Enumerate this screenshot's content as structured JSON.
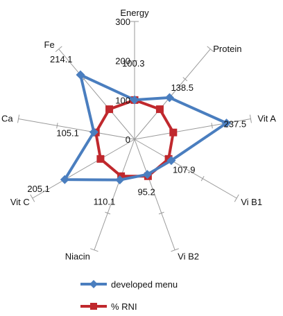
{
  "chart_data": {
    "type": "radar",
    "categories": [
      "Energy",
      "Protein",
      "Vit A",
      "Vi B1",
      "Vi B2",
      "Niacin",
      "Vit C",
      "Ca",
      "Fe"
    ],
    "series": [
      {
        "name": "developed menu",
        "values": [
          100.3,
          138.5,
          237.5,
          107.9,
          95.2,
          110.1,
          205.1,
          105.1,
          214.1
        ],
        "color": "#4a7ebf",
        "marker": "diamond"
      },
      {
        "name": "% RNI",
        "values": [
          100,
          100,
          100,
          100,
          100,
          100,
          100,
          100,
          100
        ],
        "color": "#c0282d",
        "marker": "square"
      }
    ],
    "data_labels": [
      "100.3",
      "138.5",
      "237.5",
      "107.9",
      "95.2",
      "110.1",
      "205.1",
      "105.1",
      "214.1"
    ],
    "rlim": [
      0,
      300
    ],
    "ticks": [
      0,
      100,
      200,
      300
    ],
    "tick_labels": [
      "0",
      "100",
      "200",
      "300"
    ],
    "legend": "bottom",
    "grid": false
  }
}
